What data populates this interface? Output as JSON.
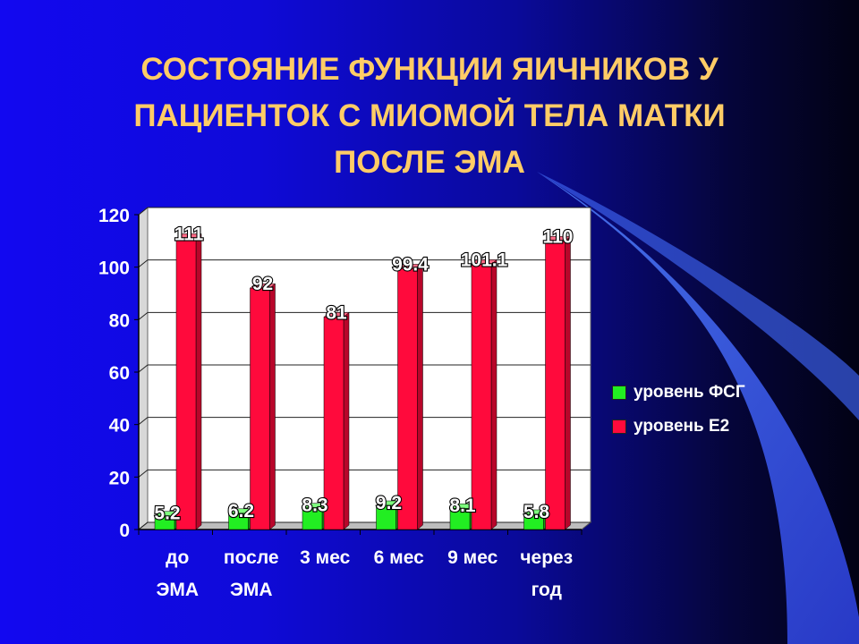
{
  "slide": {
    "title_lines": [
      "СОСТОЯНИЕ ФУНКЦИИ ЯИЧНИКОВ У",
      "ПАЦИЕНТОК С МИОМОЙ ТЕЛА МАТКИ",
      "ПОСЛЕ ЭМА"
    ]
  },
  "colors": {
    "fsg": "#22ee22",
    "e2": "#ff0a3c",
    "title": "#ffcc66"
  },
  "chart_data": {
    "type": "bar",
    "categories": [
      [
        "до",
        "ЭМА"
      ],
      [
        "после",
        "ЭМА"
      ],
      [
        "3 мес"
      ],
      [
        "6 мес"
      ],
      [
        "9 мес"
      ],
      [
        "через",
        "год"
      ]
    ],
    "series": [
      {
        "name": "уровень ФСГ",
        "values": [
          5.2,
          6.2,
          8.3,
          9.2,
          8.1,
          5.8
        ],
        "labels": [
          "5.2",
          "6.2",
          "8.3",
          "9.2",
          "8.1",
          "5.8"
        ]
      },
      {
        "name": "уровень Е2",
        "values": [
          111,
          92,
          81,
          99.4,
          101.1,
          110
        ],
        "labels": [
          "111",
          "92",
          "81",
          "99.4",
          "101.1",
          "110"
        ]
      }
    ],
    "ylim": [
      0,
      120
    ],
    "yticks": [
      0,
      20,
      40,
      60,
      80,
      100,
      120
    ],
    "grid": true,
    "legend_position": "right"
  }
}
